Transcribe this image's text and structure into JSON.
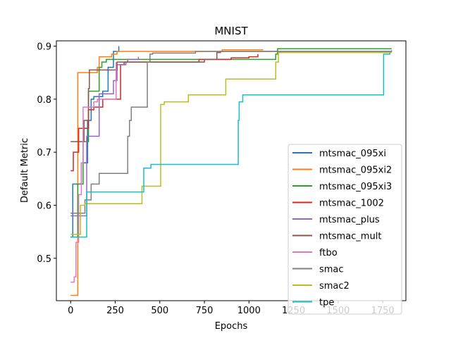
{
  "chart_data": {
    "type": "line",
    "title": "MNIST",
    "xlabel": "Epochs",
    "ylabel": "Default Metric",
    "xlim": [
      -80,
      1880
    ],
    "ylim": [
      0.42,
      0.91
    ],
    "xticks": [
      0,
      250,
      500,
      750,
      1000,
      1250,
      1500,
      1750
    ],
    "yticks": [
      0.5,
      0.6,
      0.7,
      0.8,
      0.9
    ],
    "xtick_labels": [
      "0",
      "250",
      "500",
      "750",
      "1000",
      "1250",
      "1500",
      "1750"
    ],
    "ytick_labels": [
      "0.5",
      "0.6",
      "0.7",
      "0.8",
      "0.9"
    ],
    "grid": false,
    "legend_position": "lower-right",
    "series": [
      {
        "name": "mtsmac_095xi",
        "color": "#1f77b4",
        "x": [
          0,
          10,
          12,
          55,
          60,
          90,
          95,
          110,
          115,
          130,
          150,
          180,
          200,
          210,
          240,
          270
        ],
        "y": [
          0.54,
          0.54,
          0.64,
          0.64,
          0.68,
          0.68,
          0.76,
          0.76,
          0.8,
          0.805,
          0.805,
          0.815,
          0.815,
          0.86,
          0.89,
          0.9
        ]
      },
      {
        "name": "mtsmac_095xi2",
        "color": "#ff7f0e",
        "x": [
          0,
          30,
          40,
          50,
          60,
          140,
          150,
          160,
          230,
          240,
          260,
          850,
          1080
        ],
        "y": [
          0.43,
          0.43,
          0.85,
          0.85,
          0.85,
          0.85,
          0.86,
          0.88,
          0.885,
          0.885,
          0.89,
          0.893,
          0.893
        ]
      },
      {
        "name": "mtsmac_095xi3",
        "color": "#2ca02c",
        "x": [
          0,
          35,
          40,
          55,
          70,
          95,
          100,
          150,
          160,
          175,
          200,
          1150,
          1160,
          1800
        ],
        "y": [
          0.54,
          0.54,
          0.64,
          0.64,
          0.72,
          0.72,
          0.815,
          0.815,
          0.86,
          0.87,
          0.875,
          0.885,
          0.895,
          0.895
        ]
      },
      {
        "name": "mtsmac_1002",
        "color": "#d62728",
        "x": [
          0,
          10,
          15,
          40,
          45,
          95,
          100,
          130,
          180,
          280,
          300,
          480,
          700,
          720,
          900,
          1000,
          1050
        ],
        "y": [
          0.665,
          0.665,
          0.7,
          0.7,
          0.745,
          0.745,
          0.78,
          0.785,
          0.8,
          0.865,
          0.87,
          0.87,
          0.87,
          0.875,
          0.878,
          0.88,
          0.885
        ]
      },
      {
        "name": "mtsmac_plus",
        "color": "#9467bd",
        "x": [
          0,
          85,
          90,
          160,
          240,
          260,
          310,
          320,
          380
        ],
        "y": [
          0.58,
          0.58,
          0.73,
          0.81,
          0.835,
          0.865,
          0.87,
          0.875,
          0.88
        ]
      },
      {
        "name": "mtsmac_mult",
        "color": "#8c564b",
        "x": [
          0,
          65,
          75,
          100,
          105,
          130,
          210,
          260,
          750,
          820,
          840,
          1800
        ],
        "y": [
          0.72,
          0.72,
          0.76,
          0.82,
          0.855,
          0.855,
          0.855,
          0.87,
          0.875,
          0.888,
          0.89,
          0.89
        ]
      },
      {
        "name": "ftbo",
        "color": "#e377c2",
        "x": [
          0,
          20,
          30,
          45,
          60,
          70,
          130,
          150,
          240,
          255
        ],
        "y": [
          0.455,
          0.465,
          0.53,
          0.62,
          0.68,
          0.785,
          0.795,
          0.8,
          0.8,
          0.87
        ]
      },
      {
        "name": "smac",
        "color": "#7f7f7f",
        "x": [
          0,
          70,
          80,
          105,
          115,
          160,
          185,
          210,
          230,
          270,
          300,
          320,
          330,
          340,
          350,
          415,
          430,
          445,
          460,
          700,
          1800
        ],
        "y": [
          0.585,
          0.585,
          0.61,
          0.61,
          0.64,
          0.66,
          0.66,
          0.66,
          0.66,
          0.66,
          0.66,
          0.73,
          0.76,
          0.785,
          0.785,
          0.785,
          0.87,
          0.885,
          0.887,
          0.89,
          0.892
        ]
      },
      {
        "name": "smac2",
        "color": "#bcbd22",
        "x": [
          0,
          40,
          55,
          80,
          390,
          400,
          495,
          505,
          525,
          650,
          660,
          860,
          870,
          1140,
          1150,
          1165,
          1800
        ],
        "y": [
          0.545,
          0.545,
          0.6,
          0.603,
          0.603,
          0.636,
          0.636,
          0.79,
          0.795,
          0.795,
          0.808,
          0.808,
          0.838,
          0.838,
          0.87,
          0.888,
          0.888
        ]
      },
      {
        "name": "tpe",
        "color": "#17becf",
        "x": [
          0,
          80,
          90,
          395,
          410,
          440,
          450,
          920,
          940,
          945,
          965,
          1740,
          1755,
          1790
        ],
        "y": [
          0.54,
          0.54,
          0.625,
          0.625,
          0.67,
          0.67,
          0.677,
          0.677,
          0.76,
          0.795,
          0.808,
          0.808,
          0.885,
          0.888
        ]
      }
    ]
  }
}
